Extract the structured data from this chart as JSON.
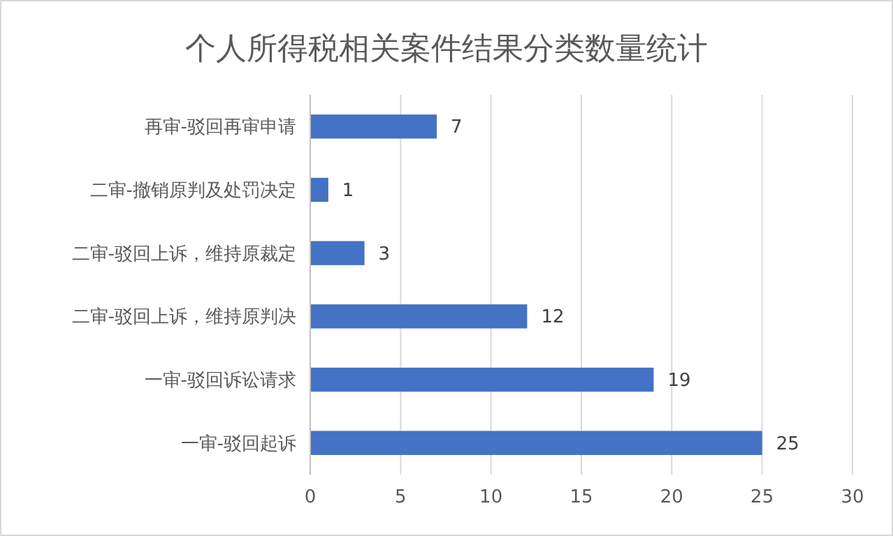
{
  "chart_data": {
    "type": "bar",
    "orientation": "horizontal",
    "title": "个人所得税相关案件结果分类数量统计",
    "categories": [
      "再审-驳回再审申请",
      "二审-撤销原判及处罚决定",
      "二审-驳回上诉，维持原裁定",
      "二审-驳回上诉，维持原判决",
      "一审-驳回诉讼请求",
      "一审-驳回起诉"
    ],
    "values": [
      7,
      1,
      3,
      12,
      19,
      25
    ],
    "color": "#4472c4",
    "xlim": [
      0,
      30
    ],
    "xticks": [
      0,
      5,
      10,
      15,
      20,
      25,
      30
    ],
    "grid": "x",
    "data_labels": true
  }
}
